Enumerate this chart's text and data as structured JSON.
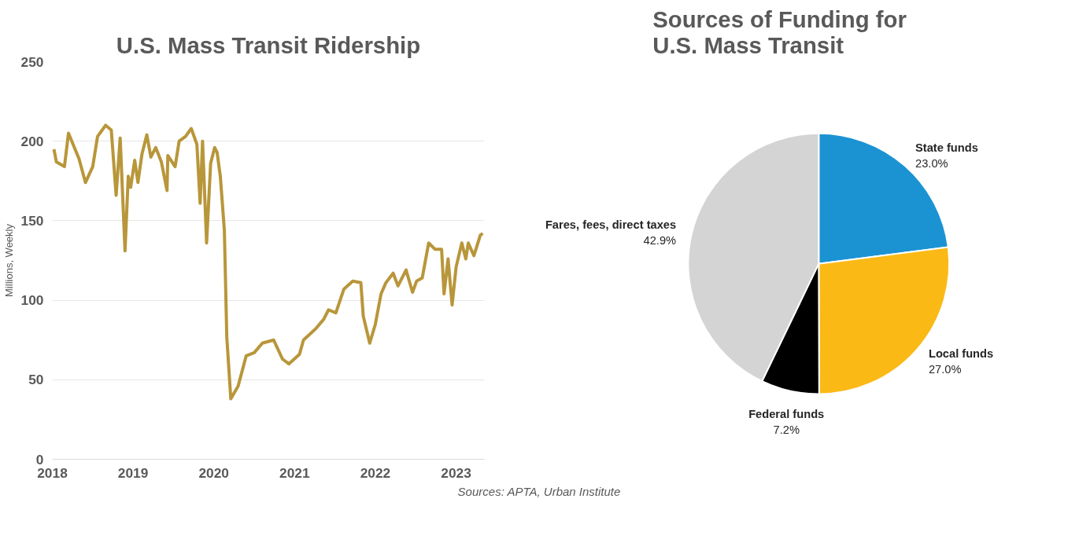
{
  "chart_data": [
    {
      "type": "line",
      "title": "U.S. Mass Transit Ridership",
      "ylabel": "Millions, Weekly",
      "xlim": [
        2018,
        2023.35
      ],
      "ylim": [
        0,
        250
      ],
      "xticks": [
        2018,
        2019,
        2020,
        2021,
        2022,
        2023
      ],
      "yticks": [
        0,
        50,
        100,
        150,
        200,
        250
      ],
      "grid": "y",
      "marker": "none",
      "line_style": "solid",
      "series": [
        {
          "color": "#b8963a",
          "x": [
            2018.02,
            2018.05,
            2018.15,
            2018.2,
            2018.33,
            2018.41,
            2018.5,
            2018.56,
            2018.66,
            2018.73,
            2018.79,
            2018.84,
            2018.9,
            2018.94,
            2018.97,
            2019.02,
            2019.06,
            2019.11,
            2019.17,
            2019.22,
            2019.28,
            2019.35,
            2019.42,
            2019.43,
            2019.52,
            2019.57,
            2019.65,
            2019.72,
            2019.79,
            2019.83,
            2019.86,
            2019.91,
            2019.96,
            2020.01,
            2020.04,
            2020.08,
            2020.13,
            2020.16,
            2020.21,
            2020.3,
            2020.4,
            2020.5,
            2020.6,
            2020.74,
            2020.85,
            2020.93,
            2021.06,
            2021.11,
            2021.26,
            2021.36,
            2021.42,
            2021.51,
            2021.61,
            2021.72,
            2021.82,
            2021.85,
            2021.93,
            2022.0,
            2022.07,
            2022.13,
            2022.22,
            2022.28,
            2022.38,
            2022.46,
            2022.51,
            2022.58,
            2022.66,
            2022.74,
            2022.82,
            2022.85,
            2022.9,
            2022.95,
            2023.0,
            2023.07,
            2023.12,
            2023.15,
            2023.22,
            2023.3,
            2023.33
          ],
          "values": [
            195,
            187,
            184,
            205,
            189,
            174,
            184,
            203,
            210,
            207,
            166,
            202,
            131,
            178,
            171,
            188,
            174,
            192,
            204,
            190,
            196,
            187,
            169,
            191,
            184,
            200,
            203,
            208,
            198,
            161,
            200,
            136,
            186,
            196,
            193,
            178,
            144,
            77,
            38,
            46,
            65,
            67,
            73,
            75,
            63,
            60,
            66,
            75,
            82,
            88,
            94,
            92,
            107,
            112,
            111,
            90,
            73,
            85,
            104,
            111,
            117,
            109,
            119,
            105,
            112,
            114,
            136,
            132,
            132,
            104,
            126,
            97,
            121,
            136,
            126,
            136,
            128,
            141,
            142
          ]
        }
      ]
    },
    {
      "type": "pie",
      "title": "Sources of Funding for\nU.S. Mass Transit",
      "categories": [
        "State funds",
        "Local funds",
        "Federal funds",
        "Fares, fees, direct taxes"
      ],
      "values": [
        23.0,
        27.0,
        7.2,
        42.9
      ],
      "colors": [
        "#1b93d3",
        "#fbb916",
        "#000000",
        "#d4d4d4"
      ],
      "value_labels": [
        "23.0%",
        "27.0%",
        "7.2%",
        "42.9%"
      ],
      "annotations": [
        "Sources: APTA, Urban Institute"
      ]
    }
  ]
}
